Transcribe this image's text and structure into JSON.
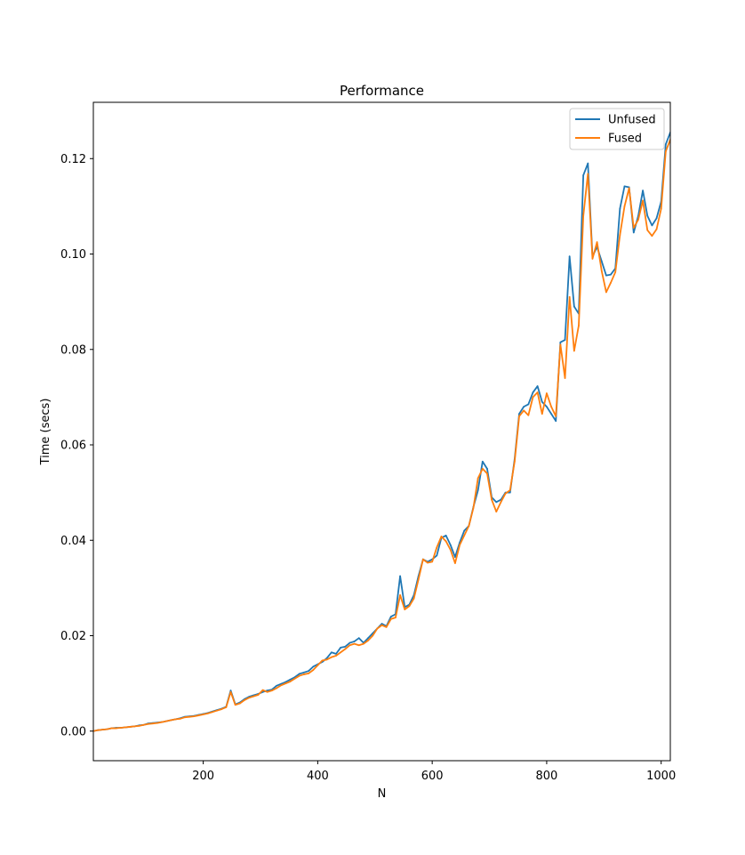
{
  "chart_data": {
    "type": "line",
    "title": "Performance",
    "xlabel": "N",
    "ylabel": "Time (secs)",
    "xlim": [
      8,
      1016
    ],
    "ylim": [
      -0.0062,
      0.1318
    ],
    "xticks": [
      200,
      400,
      600,
      800,
      1000
    ],
    "yticks": [
      0.0,
      0.02,
      0.04,
      0.06,
      0.08,
      0.1,
      0.12
    ],
    "ytick_labels": [
      "0.00",
      "0.02",
      "0.04",
      "0.06",
      "0.08",
      "0.10",
      "0.12"
    ],
    "grid": false,
    "legend": "top-right",
    "x": [
      8,
      16,
      24,
      32,
      40,
      48,
      56,
      64,
      72,
      80,
      88,
      96,
      104,
      112,
      120,
      128,
      136,
      144,
      152,
      160,
      168,
      176,
      184,
      192,
      200,
      208,
      216,
      224,
      232,
      240,
      248,
      256,
      264,
      272,
      280,
      288,
      296,
      304,
      312,
      320,
      328,
      336,
      344,
      352,
      360,
      368,
      376,
      384,
      392,
      400,
      408,
      416,
      424,
      432,
      440,
      448,
      456,
      464,
      472,
      480,
      488,
      496,
      504,
      512,
      520,
      528,
      536,
      544,
      552,
      560,
      568,
      576,
      584,
      592,
      600,
      608,
      616,
      624,
      632,
      640,
      648,
      656,
      664,
      672,
      680,
      688,
      696,
      704,
      712,
      720,
      728,
      736,
      744,
      752,
      760,
      768,
      776,
      784,
      792,
      800,
      808,
      816,
      824,
      832,
      840,
      848,
      856,
      864,
      872,
      880,
      888,
      896,
      904,
      912,
      920,
      928,
      936,
      944,
      952,
      960,
      968,
      976,
      984,
      992,
      1000,
      1008,
      1016
    ],
    "series": [
      {
        "name": "Unfused",
        "color": "#1f77b4",
        "values": [
          0.0,
          0.0002,
          0.0003,
          0.0004,
          0.0006,
          0.0007,
          0.0007,
          0.0008,
          0.0009,
          0.001,
          0.0012,
          0.0013,
          0.0016,
          0.0017,
          0.0018,
          0.0019,
          0.0021,
          0.0023,
          0.0025,
          0.0027,
          0.003,
          0.0031,
          0.0032,
          0.0034,
          0.0036,
          0.0038,
          0.0041,
          0.0044,
          0.0047,
          0.0051,
          0.0085,
          0.0056,
          0.006,
          0.0067,
          0.0072,
          0.0075,
          0.0078,
          0.0082,
          0.0085,
          0.0087,
          0.0095,
          0.0099,
          0.0103,
          0.0108,
          0.0113,
          0.012,
          0.0123,
          0.0126,
          0.0135,
          0.014,
          0.0145,
          0.0153,
          0.0165,
          0.0162,
          0.0175,
          0.0177,
          0.0185,
          0.0188,
          0.0195,
          0.0185,
          0.0195,
          0.0205,
          0.0215,
          0.0225,
          0.022,
          0.024,
          0.0245,
          0.0325,
          0.026,
          0.0265,
          0.0285,
          0.0325,
          0.036,
          0.0355,
          0.036,
          0.0368,
          0.0405,
          0.041,
          0.039,
          0.0365,
          0.0395,
          0.042,
          0.043,
          0.047,
          0.0505,
          0.0565,
          0.055,
          0.049,
          0.048,
          0.0485,
          0.05,
          0.05,
          0.057,
          0.0665,
          0.068,
          0.0685,
          0.071,
          0.0723,
          0.069,
          0.068,
          0.0665,
          0.065,
          0.0815,
          0.082,
          0.0995,
          0.089,
          0.0875,
          0.1165,
          0.119,
          0.0995,
          0.1015,
          0.0985,
          0.0955,
          0.0957,
          0.097,
          0.1095,
          0.1142,
          0.114,
          0.1045,
          0.108,
          0.1133,
          0.108,
          0.106,
          0.1075,
          0.111,
          0.123,
          0.1255
        ]
      },
      {
        "name": "Fused",
        "color": "#ff7f0e",
        "values": [
          0.0,
          0.0002,
          0.0003,
          0.0004,
          0.0006,
          0.0006,
          0.0007,
          0.0008,
          0.0009,
          0.001,
          0.0011,
          0.0013,
          0.0015,
          0.0016,
          0.0017,
          0.0019,
          0.0021,
          0.0023,
          0.0025,
          0.0026,
          0.0029,
          0.003,
          0.0031,
          0.0033,
          0.0035,
          0.0037,
          0.004,
          0.0043,
          0.0046,
          0.005,
          0.0082,
          0.0055,
          0.0058,
          0.0065,
          0.007,
          0.0073,
          0.0076,
          0.0086,
          0.0082,
          0.0085,
          0.009,
          0.0096,
          0.01,
          0.0104,
          0.011,
          0.0116,
          0.0119,
          0.0121,
          0.0128,
          0.0138,
          0.0148,
          0.015,
          0.0155,
          0.0158,
          0.0165,
          0.0172,
          0.018,
          0.0183,
          0.018,
          0.0183,
          0.019,
          0.02,
          0.0215,
          0.0222,
          0.0218,
          0.0235,
          0.0238,
          0.0285,
          0.0255,
          0.0262,
          0.0278,
          0.0318,
          0.036,
          0.0353,
          0.0355,
          0.0385,
          0.0408,
          0.0398,
          0.038,
          0.0352,
          0.039,
          0.041,
          0.043,
          0.0468,
          0.053,
          0.055,
          0.054,
          0.0485,
          0.046,
          0.048,
          0.0498,
          0.0505,
          0.0565,
          0.066,
          0.0672,
          0.0662,
          0.07,
          0.071,
          0.0665,
          0.0708,
          0.068,
          0.066,
          0.081,
          0.074,
          0.091,
          0.0797,
          0.085,
          0.108,
          0.1168,
          0.099,
          0.1025,
          0.0965,
          0.092,
          0.094,
          0.0962,
          0.104,
          0.11,
          0.1138,
          0.1055,
          0.1072,
          0.1112,
          0.105,
          0.1038,
          0.1052,
          0.1095,
          0.1215,
          0.124
        ]
      }
    ]
  }
}
